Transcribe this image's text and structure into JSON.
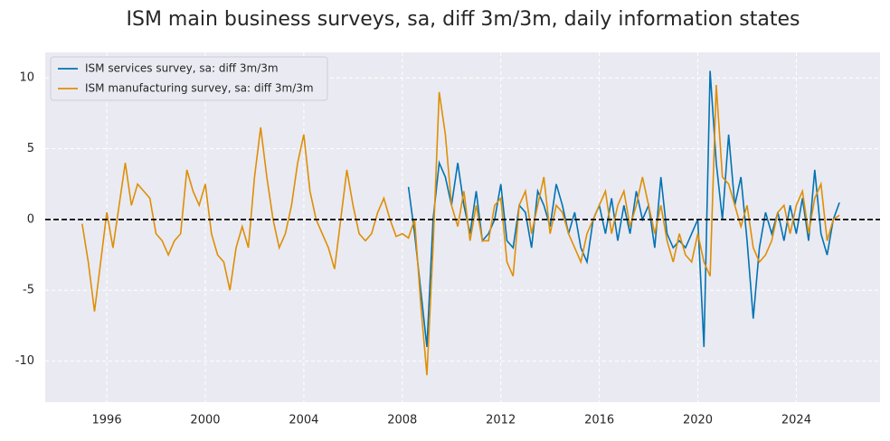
{
  "chart_data": {
    "type": "line",
    "title": "ISM main business surveys, sa, diff 3m/3m, daily information states",
    "x": [
      1995.0,
      1995.25,
      1995.5,
      1995.75,
      1996.0,
      1996.25,
      1996.5,
      1996.75,
      1997.0,
      1997.25,
      1997.5,
      1997.75,
      1998.0,
      1998.25,
      1998.5,
      1998.75,
      1999.0,
      1999.25,
      1999.5,
      1999.75,
      2000.0,
      2000.25,
      2000.5,
      2000.75,
      2001.0,
      2001.25,
      2001.5,
      2001.75,
      2002.0,
      2002.25,
      2002.5,
      2002.75,
      2003.0,
      2003.25,
      2003.5,
      2003.75,
      2004.0,
      2004.25,
      2004.5,
      2004.75,
      2005.0,
      2005.25,
      2005.5,
      2005.75,
      2006.0,
      2006.25,
      2006.5,
      2006.75,
      2007.0,
      2007.25,
      2007.5,
      2007.75,
      2008.0,
      2008.25,
      2008.5,
      2008.75,
      2009.0,
      2009.25,
      2009.5,
      2009.75,
      2010.0,
      2010.25,
      2010.5,
      2010.75,
      2011.0,
      2011.25,
      2011.5,
      2011.75,
      2012.0,
      2012.25,
      2012.5,
      2012.75,
      2013.0,
      2013.25,
      2013.5,
      2013.75,
      2014.0,
      2014.25,
      2014.5,
      2014.75,
      2015.0,
      2015.25,
      2015.5,
      2015.75,
      2016.0,
      2016.25,
      2016.5,
      2016.75,
      2017.0,
      2017.25,
      2017.5,
      2017.75,
      2018.0,
      2018.25,
      2018.5,
      2018.75,
      2019.0,
      2019.25,
      2019.5,
      2019.75,
      2020.0,
      2020.25,
      2020.5,
      2020.75,
      2021.0,
      2021.25,
      2021.5,
      2021.75,
      2022.0,
      2022.25,
      2022.5,
      2022.75,
      2023.0,
      2023.25,
      2023.5,
      2023.75,
      2024.0,
      2024.25,
      2024.5,
      2024.75,
      2025.0,
      2025.25,
      2025.5,
      2025.75
    ],
    "series": [
      {
        "name": "ISM services survey, sa: diff 3m/3m",
        "color": "#0173b2",
        "values": [
          null,
          null,
          null,
          null,
          null,
          null,
          null,
          null,
          null,
          null,
          null,
          null,
          null,
          null,
          null,
          null,
          null,
          null,
          null,
          null,
          null,
          null,
          null,
          null,
          null,
          null,
          null,
          null,
          null,
          null,
          null,
          null,
          null,
          null,
          null,
          null,
          null,
          null,
          null,
          null,
          null,
          null,
          null,
          null,
          null,
          null,
          null,
          null,
          null,
          null,
          null,
          null,
          null,
          2.3,
          -1,
          -5,
          -9,
          0,
          4,
          3,
          1,
          4,
          1,
          -1,
          2,
          -1.5,
          -1,
          0,
          2.5,
          -1.5,
          -2,
          1,
          0.5,
          -2,
          2,
          1,
          -0.5,
          2.5,
          1,
          -1,
          0.5,
          -2,
          -3,
          0,
          1,
          -1,
          1.5,
          -1.5,
          1,
          -1,
          2,
          0,
          1,
          -2,
          3,
          -1,
          -2,
          -1.5,
          -2,
          -1,
          0,
          -9,
          10.5,
          4,
          0,
          6,
          1,
          3,
          -1.5,
          -7,
          -2,
          0.5,
          -1,
          0.5,
          -1.5,
          1,
          -1,
          1.5,
          -1.5,
          3.5,
          -1,
          -2.5,
          0,
          1.2
        ]
      },
      {
        "name": "ISM manufacturing survey, sa: diff 3m/3m",
        "color": "#de8f05",
        "values": [
          -0.3,
          -3,
          -6.5,
          -3,
          0.5,
          -2,
          1,
          4,
          1,
          2.5,
          2,
          1.5,
          -1,
          -1.5,
          -2.5,
          -1.5,
          -1,
          3.5,
          2,
          1,
          2.5,
          -1,
          -2.5,
          -3,
          -5,
          -2,
          -0.5,
          -2,
          3,
          6.5,
          3,
          0,
          -2,
          -1,
          1,
          4,
          6,
          2,
          0,
          -1,
          -2,
          -3.5,
          0,
          3.5,
          1,
          -1,
          -1.5,
          -1,
          0.5,
          1.5,
          0,
          -1.2,
          -1,
          -1.3,
          0,
          -6,
          -11,
          -2,
          9,
          6,
          1,
          -0.5,
          2,
          -1.5,
          1,
          -1.5,
          -1.5,
          1,
          1.5,
          -3,
          -4,
          1,
          2,
          -1,
          1,
          3,
          -1,
          1,
          0.5,
          -1,
          -2,
          -3,
          -1,
          0,
          1,
          2,
          -1,
          1,
          2,
          -0.5,
          1,
          3,
          1,
          -1,
          1,
          -1.5,
          -3,
          -1,
          -2.5,
          -3,
          -1,
          -3,
          -4,
          9.5,
          3,
          2.5,
          1,
          -0.5,
          1,
          -2,
          -3,
          -2.5,
          -1.5,
          0.5,
          1,
          -1,
          1,
          2,
          -1,
          1.5,
          2.5,
          -1.5,
          0,
          0.3
        ]
      }
    ],
    "xlim": [
      1993.5,
      2027.4
    ],
    "xticks": [
      1996,
      2000,
      2004,
      2008,
      2012,
      2016,
      2020,
      2024
    ],
    "ylim": [
      -12.9,
      11.8
    ],
    "yticks": [
      -10,
      -5,
      0,
      5,
      10
    ],
    "hline": 0,
    "grid": true,
    "legend": "upper left"
  }
}
